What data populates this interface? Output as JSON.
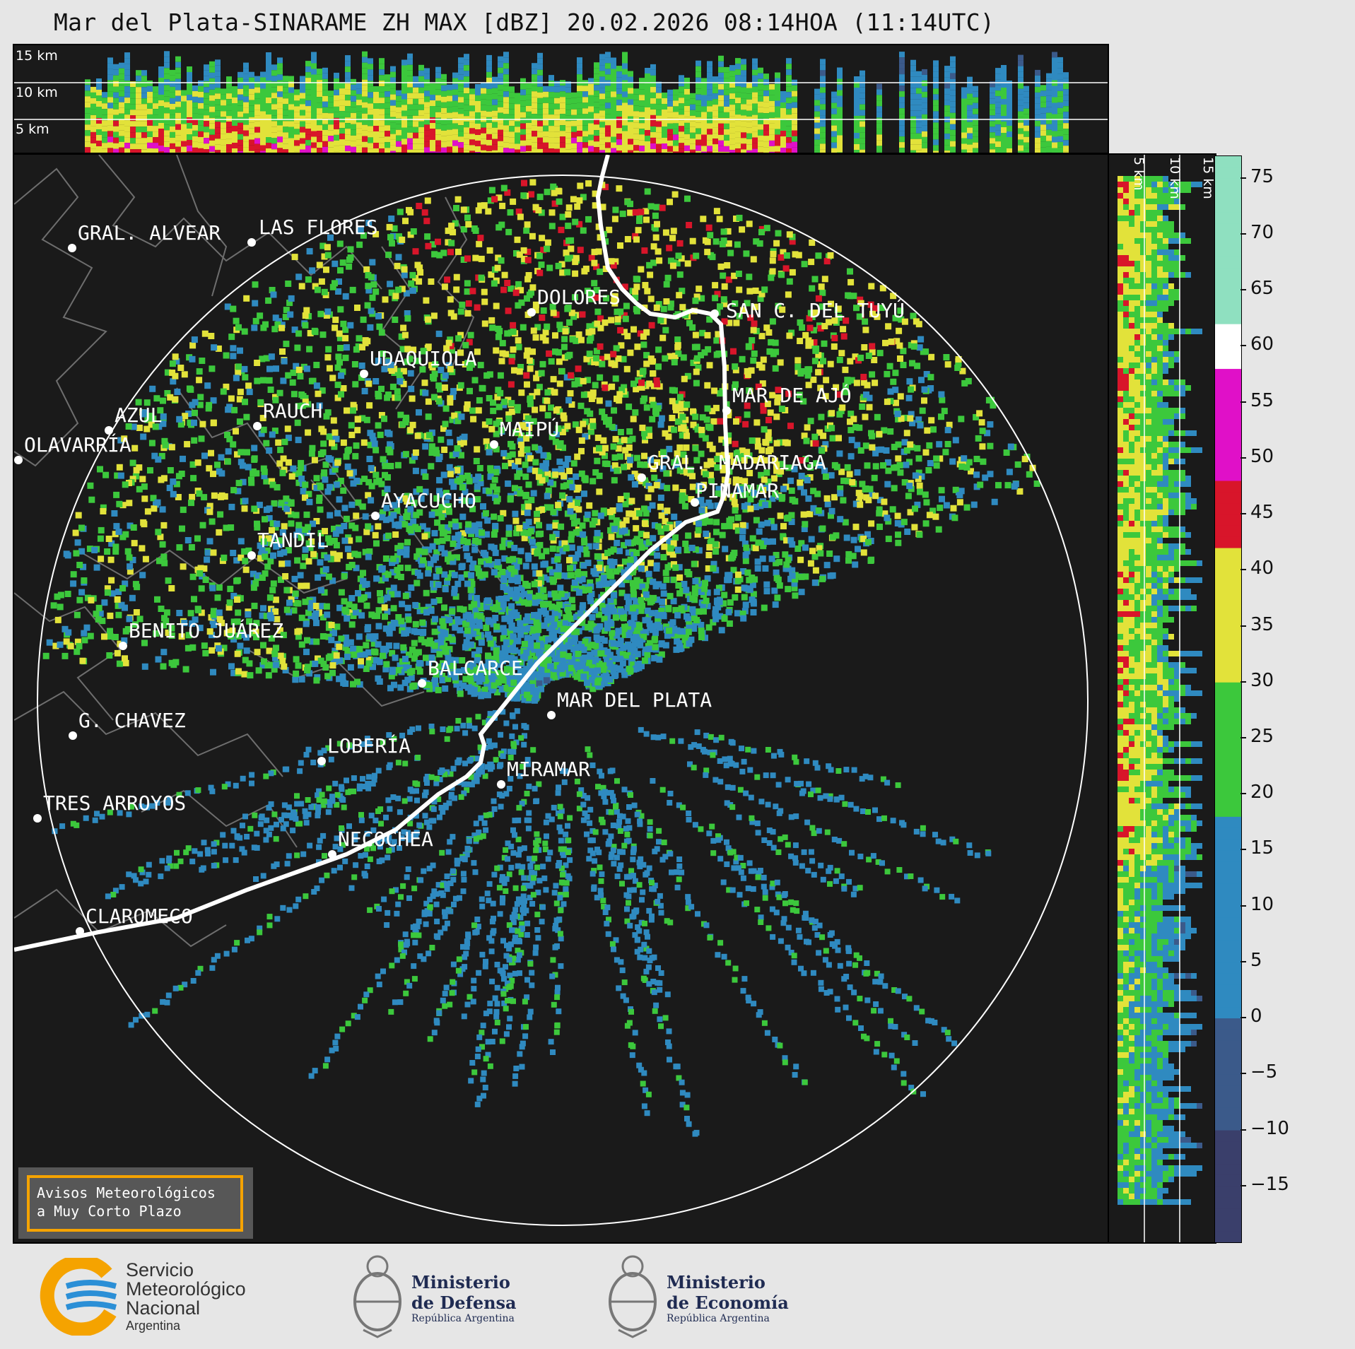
{
  "title": "Mar del Plata-SINARAME ZH MAX [dBZ] 20.02.2026 08:14HOA (11:14UTC)",
  "top_panel": {
    "height_labels": [
      "15 km",
      "10 km",
      "5 km"
    ]
  },
  "side_panel": {
    "height_labels": [
      "5 km",
      "10 km",
      "15 km"
    ]
  },
  "cities": [
    {
      "name": "GRAL. ALVEAR"
    },
    {
      "name": "LAS FLORES"
    },
    {
      "name": "DOLORES"
    },
    {
      "name": "SAN C. DEL TUYÚ"
    },
    {
      "name": "UDAQUIOLA"
    },
    {
      "name": "MAR DE AJÓ"
    },
    {
      "name": "AZUL"
    },
    {
      "name": "RAUCH"
    },
    {
      "name": "MAIPÚ"
    },
    {
      "name": "OLAVARRÍA"
    },
    {
      "name": "GRAL. MADARIAGA"
    },
    {
      "name": "AYACUCHO"
    },
    {
      "name": "PINAMAR"
    },
    {
      "name": "TANDIL"
    },
    {
      "name": "BENITO JUÁREZ"
    },
    {
      "name": "BALCARCE"
    },
    {
      "name": "MAR DEL PLATA"
    },
    {
      "name": "G. CHAVEZ"
    },
    {
      "name": "LOBERÍA"
    },
    {
      "name": "MIRAMAR"
    },
    {
      "name": "TRES ARROYOS"
    },
    {
      "name": "NECOCHEA"
    },
    {
      "name": "CLAROMECO"
    }
  ],
  "colorbar": {
    "unit": "dBZ",
    "range": [
      -20,
      77
    ],
    "ticks": [
      "75",
      "70",
      "65",
      "60",
      "55",
      "50",
      "45",
      "40",
      "35",
      "30",
      "25",
      "20",
      "15",
      "10",
      "5",
      "0",
      "−5",
      "−10",
      "−15"
    ],
    "colors": {
      "lt_-10": "#3a3f6b",
      "-10_0": "#3b5a8a",
      "0_18": "#2f8ac0",
      "18_30": "#3cc83c",
      "30_42": "#e2e23a",
      "42_48": "#d8152a",
      "48_58": "#e010c8",
      "58_62": "#ffffff",
      "gt_62": "#8fe0c0"
    }
  },
  "range_ring_km": 240,
  "aviso": {
    "line1": "Avisos Meteorológicos",
    "line2": "a Muy Corto Plazo"
  },
  "logos": {
    "smn": {
      "line1": "Servicio",
      "line2": "Meteorológico",
      "line3": "Nacional",
      "line4": "Argentina"
    },
    "defensa": {
      "line1": "Ministerio",
      "line2": "de Defensa",
      "line3": "República Argentina"
    },
    "economia": {
      "line1": "Ministerio",
      "line2": "de Economía",
      "line3": "República Argentina"
    }
  }
}
